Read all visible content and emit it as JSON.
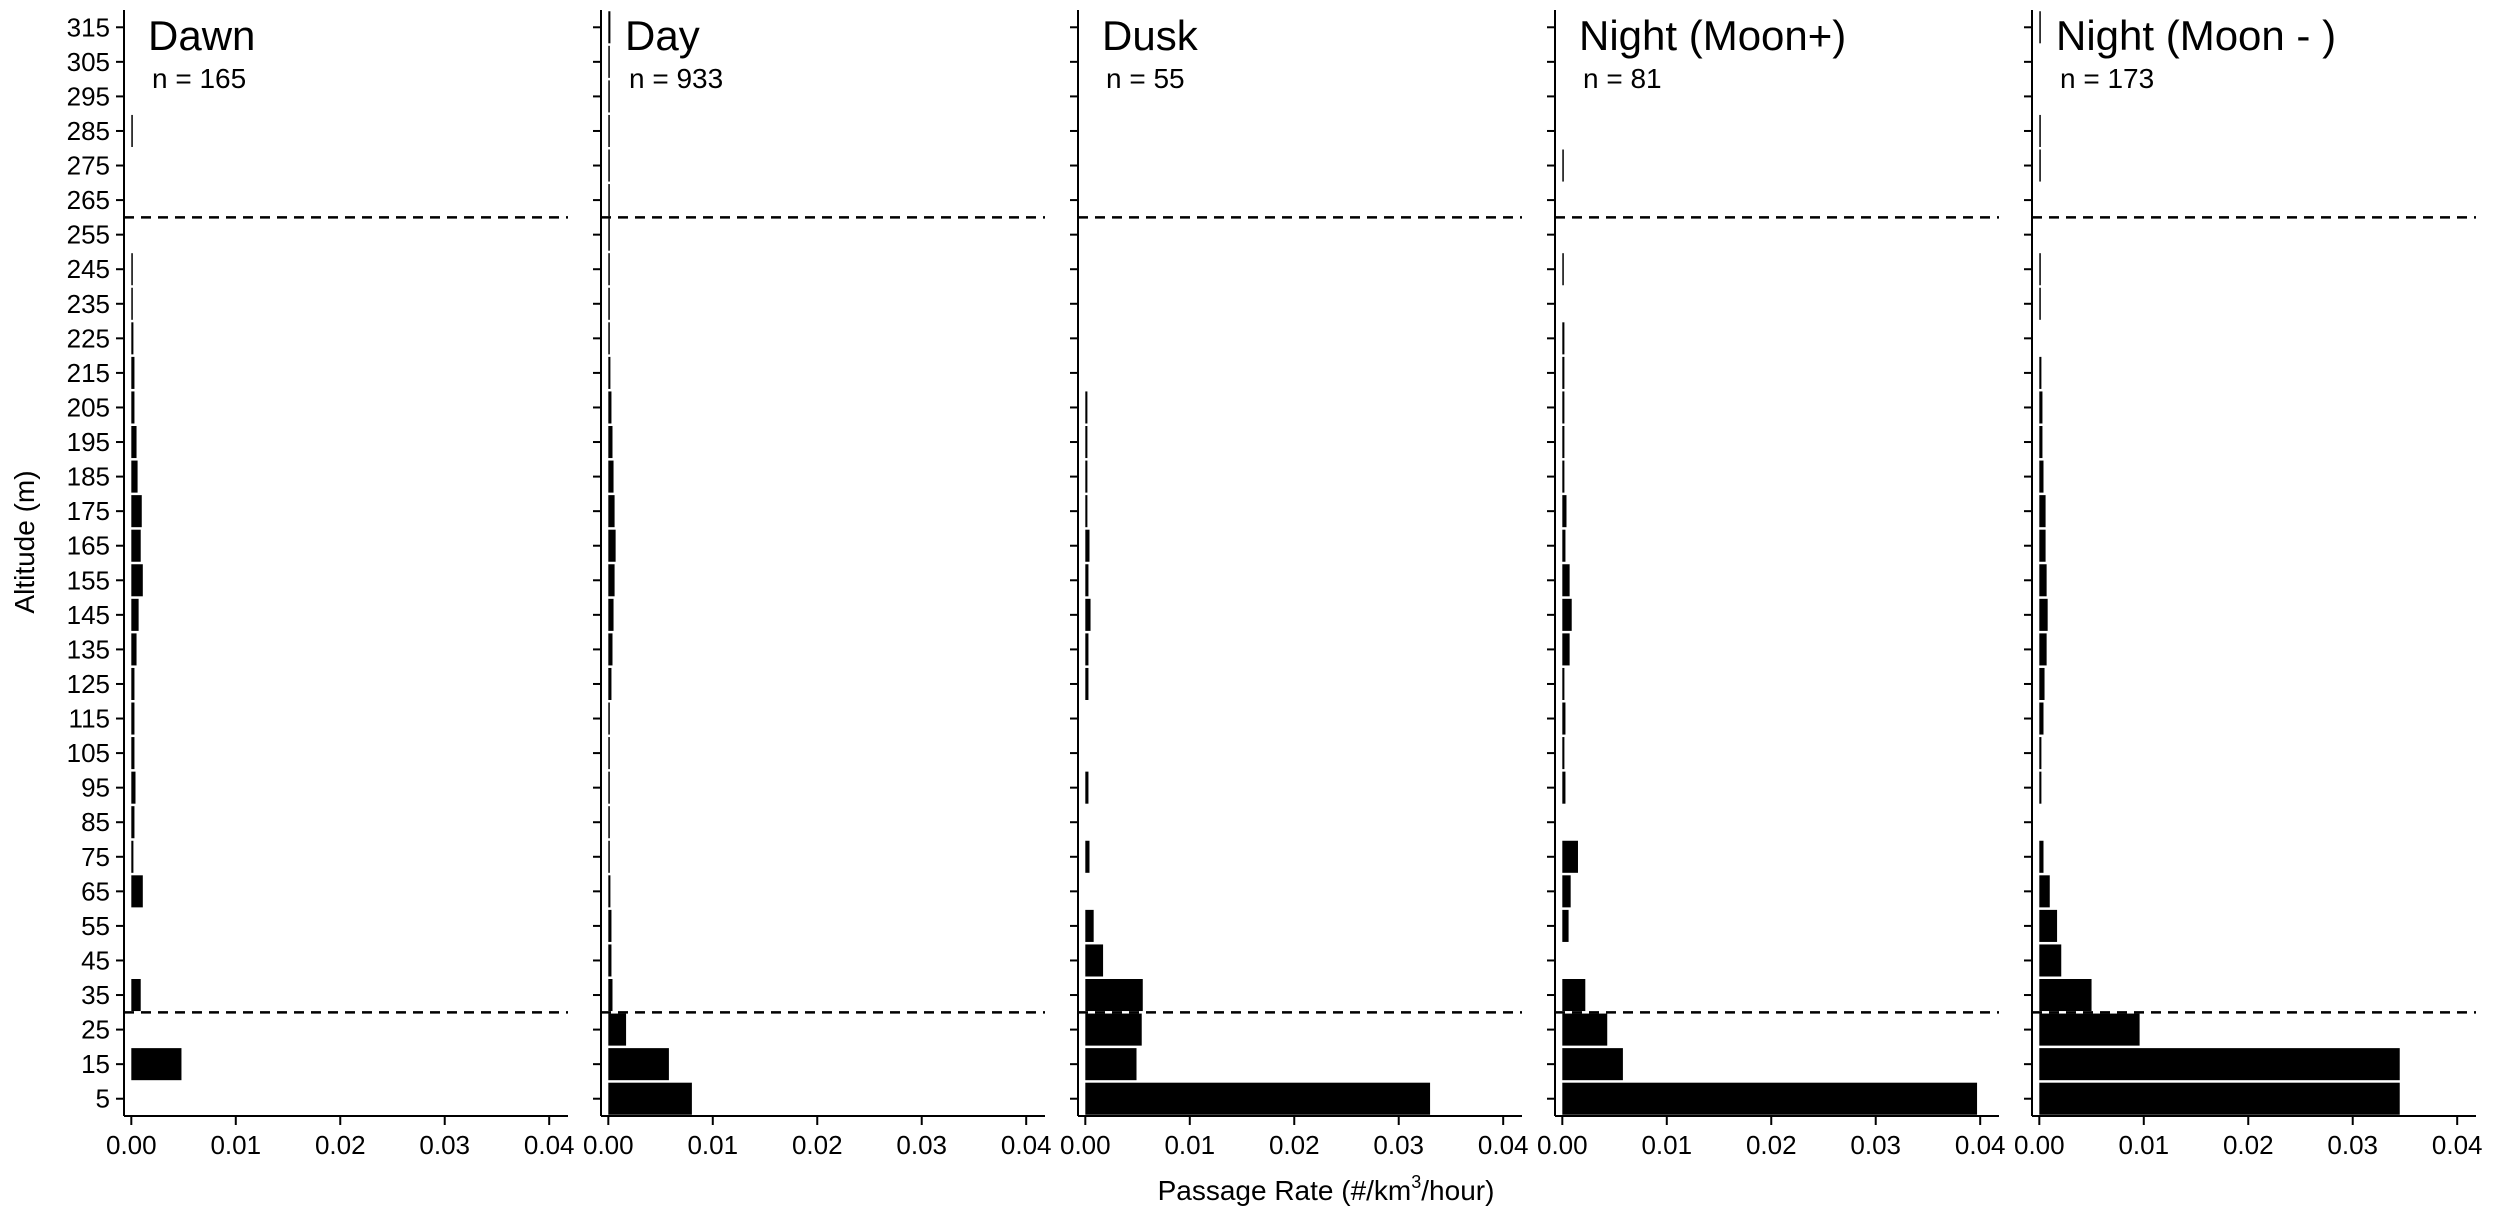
{
  "chart_data": {
    "type": "bar",
    "orientation": "horizontal",
    "ylabel": "Altitude (m)",
    "xlabel_prefix": "Passage Rate (#/km",
    "xlabel_sup": "3",
    "xlabel_suffix": "/hour)",
    "x_ticks": [
      "0.00",
      "0.01",
      "0.02",
      "0.03",
      "0.04"
    ],
    "x_tick_values": [
      0,
      0.01,
      0.02,
      0.03,
      0.04
    ],
    "xlim": [
      -0.0007,
      0.0418
    ],
    "y_ticks": [
      5,
      15,
      25,
      35,
      45,
      55,
      65,
      75,
      85,
      95,
      105,
      115,
      125,
      135,
      145,
      155,
      165,
      175,
      185,
      195,
      205,
      215,
      225,
      235,
      245,
      255,
      265,
      275,
      285,
      295,
      305,
      315
    ],
    "ylim": [
      0,
      320
    ],
    "reference_lines": [
      30,
      260
    ],
    "panels": [
      {
        "title": "Dawn",
        "n_label": "n = 165",
        "values": [
          0,
          0.0048,
          0,
          0.0009,
          0,
          0,
          0.0011,
          0.0002,
          0.0003,
          0.0004,
          0.0003,
          0.0003,
          0.0003,
          0.0005,
          0.0007,
          0.0011,
          0.0009,
          0.001,
          0.0006,
          0.0005,
          0.0003,
          0.0003,
          0.0002,
          0.0001,
          0.0001,
          0,
          0,
          0,
          0.0001,
          0,
          0,
          0
        ]
      },
      {
        "title": "Day",
        "n_label": "n = 933",
        "values": [
          0.008,
          0.0058,
          0.0017,
          0.0004,
          0.0003,
          0.0003,
          0.0002,
          0.0001,
          0.0001,
          0.0001,
          0.0001,
          0.0001,
          0.0003,
          0.0004,
          0.0005,
          0.0006,
          0.0007,
          0.0006,
          0.0005,
          0.0004,
          0.0003,
          0.0002,
          0.0001,
          0.0001,
          0.0001,
          0.0001,
          0.0001,
          0.0001,
          0.0001,
          0.0001,
          0.0001,
          0.0002
        ]
      },
      {
        "title": "Dusk",
        "n_label": "n = 55",
        "values": [
          0.033,
          0.0049,
          0.0054,
          0.0055,
          0.0017,
          0.0008,
          0,
          0.0004,
          0,
          0.0003,
          0,
          0,
          0.0003,
          0.0003,
          0.0005,
          0.0003,
          0.0004,
          0.0002,
          0.0002,
          0.0002,
          0.0002,
          0,
          0,
          0,
          0,
          0,
          0,
          0,
          0,
          0,
          0,
          0
        ]
      },
      {
        "title": "Night (Moon+)",
        "n_label": "n = 81",
        "values": [
          0.0397,
          0.0058,
          0.0043,
          0.0022,
          0,
          0.0006,
          0.0008,
          0.0015,
          0,
          0.0003,
          0.0002,
          0.0003,
          0.0002,
          0.0007,
          0.0009,
          0.0007,
          0.0003,
          0.0004,
          0.0002,
          0.0002,
          0.0002,
          0.0002,
          0.0002,
          0,
          0.0001,
          0,
          0,
          0.0001,
          0,
          0,
          0,
          0
        ]
      },
      {
        "title": "Night (Moon - )",
        "n_label": "n = 173",
        "values": [
          0.0345,
          0.0345,
          0.0096,
          0.005,
          0.0021,
          0.0017,
          0.001,
          0.0004,
          0,
          0.0002,
          0.0002,
          0.0004,
          0.0005,
          0.0007,
          0.0008,
          0.0007,
          0.0006,
          0.0006,
          0.0004,
          0.0003,
          0.0003,
          0.0002,
          0,
          0.0001,
          0.0001,
          0,
          0,
          0.0001,
          0.0001,
          0,
          0,
          0.0001
        ]
      }
    ]
  }
}
